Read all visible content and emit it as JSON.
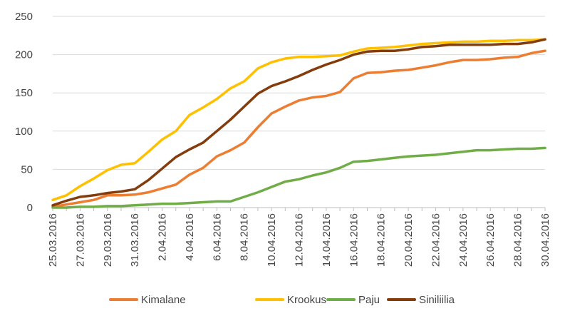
{
  "chart_data": {
    "type": "line",
    "title": "",
    "xlabel": "",
    "ylabel": "",
    "ylim": [
      0,
      250
    ],
    "yticks": [
      0,
      50,
      100,
      150,
      200,
      250
    ],
    "grid": true,
    "legend_position": "bottom",
    "x": [
      "25.03.2016",
      "26.03.2016",
      "27.03.2016",
      "28.03.2016",
      "29.03.2016",
      "30.03.2016",
      "31.03.2016",
      "1.04.2016",
      "2.04.2016",
      "3.04.2016",
      "4.04.2016",
      "5.04.2016",
      "6.04.2016",
      "7.04.2016",
      "8.04.2016",
      "9.04.2016",
      "10.04.2016",
      "11.04.2016",
      "12.04.2016",
      "13.04.2016",
      "14.04.2016",
      "15.04.2016",
      "16.04.2016",
      "17.04.2016",
      "18.04.2016",
      "19.04.2016",
      "20.04.2016",
      "21.04.2016",
      "22.04.2016",
      "23.04.2016",
      "24.04.2016",
      "25.04.2016",
      "26.04.2016",
      "27.04.2016",
      "28.04.2016",
      "29.04.2016",
      "30.04.2016"
    ],
    "xtick_labels": [
      "25.03.2016",
      "27.03.2016",
      "29.03.2016",
      "31.03.2016",
      "2.04.2016",
      "4.04.2016",
      "6.04.2016",
      "8.04.2016",
      "10.04.2016",
      "12.04.2016",
      "14.04.2016",
      "16.04.2016",
      "18.04.2016",
      "20.04.2016",
      "22.04.2016",
      "24.04.2016",
      "26.04.2016",
      "28.04.2016",
      "30.04.2016"
    ],
    "series": [
      {
        "name": "Kimalane",
        "color": "#ED7D31",
        "values": [
          1,
          4,
          7,
          10,
          16,
          16,
          17,
          20,
          25,
          30,
          43,
          52,
          67,
          75,
          85,
          105,
          123,
          132,
          140,
          144,
          146,
          151,
          169,
          176,
          177,
          179,
          180,
          183,
          186,
          190,
          193,
          193,
          194,
          196,
          197,
          202,
          205
        ]
      },
      {
        "name": "Krookus",
        "color": "#FFC000",
        "values": [
          10,
          16,
          28,
          38,
          49,
          56,
          58,
          73,
          89,
          100,
          121,
          131,
          142,
          156,
          165,
          182,
          190,
          195,
          197,
          197,
          198,
          199,
          204,
          208,
          209,
          210,
          212,
          214,
          215,
          216,
          217,
          217,
          218,
          218,
          219,
          219,
          220
        ]
      },
      {
        "name": "Paju",
        "color": "#70AD47",
        "values": [
          0,
          0,
          1,
          1,
          2,
          2,
          3,
          4,
          5,
          5,
          6,
          7,
          8,
          8,
          14,
          20,
          27,
          34,
          37,
          42,
          46,
          52,
          60,
          61,
          63,
          65,
          67,
          68,
          69,
          71,
          73,
          75,
          75,
          76,
          77,
          77,
          78
        ]
      },
      {
        "name": "Siniliilia",
        "color": "#843C0C",
        "values": [
          3,
          9,
          14,
          16,
          19,
          21,
          24,
          36,
          51,
          66,
          76,
          85,
          100,
          115,
          132,
          149,
          159,
          165,
          172,
          180,
          187,
          193,
          200,
          204,
          205,
          205,
          207,
          210,
          211,
          213,
          213,
          213,
          213,
          214,
          214,
          216,
          220
        ]
      }
    ]
  }
}
